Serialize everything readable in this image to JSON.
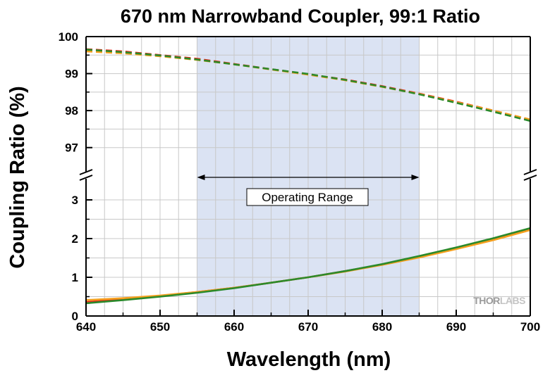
{
  "chart_data": {
    "type": "line",
    "title": "670 nm Narrowband Coupler, 99:1 Ratio",
    "xlabel": "Wavelength (nm)",
    "ylabel": "Coupling Ratio (%)",
    "xlim": [
      640,
      700
    ],
    "broken_y_axis": true,
    "upper_ylim": [
      96.5,
      100
    ],
    "lower_ylim": [
      0,
      3.4
    ],
    "x_ticks": [
      "640",
      "650",
      "660",
      "670",
      "680",
      "690",
      "700"
    ],
    "upper_y_ticks": [
      "97",
      "98",
      "99",
      "100"
    ],
    "lower_y_ticks": [
      "0",
      "1",
      "2",
      "3"
    ],
    "grid": true,
    "shaded_region": {
      "x": [
        655,
        685
      ],
      "color": "#dbe3f3",
      "label": "Operating Range"
    },
    "brand": "THORLABS",
    "series": [
      {
        "panel": "upper",
        "style": "dashed",
        "color": "#e8261c",
        "x": [
          640,
          645,
          650,
          655,
          660,
          665,
          670,
          675,
          680,
          685,
          690,
          695,
          700
        ],
        "y": [
          99.66,
          99.6,
          99.5,
          99.4,
          99.26,
          99.12,
          98.98,
          98.84,
          98.66,
          98.46,
          98.24,
          98.0,
          97.75
        ]
      },
      {
        "panel": "upper",
        "style": "dashed",
        "color": "#f5a01e",
        "x": [
          640,
          645,
          650,
          655,
          660,
          665,
          670,
          675,
          680,
          685,
          690,
          695,
          700
        ],
        "y": [
          99.6,
          99.55,
          99.47,
          99.37,
          99.25,
          99.11,
          98.97,
          98.82,
          98.64,
          98.45,
          98.23,
          98.0,
          97.76
        ]
      },
      {
        "panel": "upper",
        "style": "dashed",
        "color": "#2b8a2b",
        "x": [
          640,
          645,
          650,
          655,
          660,
          665,
          670,
          675,
          680,
          685,
          690,
          695,
          700
        ],
        "y": [
          99.65,
          99.58,
          99.49,
          99.38,
          99.25,
          99.12,
          98.99,
          98.83,
          98.65,
          98.44,
          98.21,
          97.97,
          97.72
        ]
      },
      {
        "panel": "lower",
        "style": "solid",
        "color": "#e8261c",
        "x": [
          640,
          645,
          650,
          655,
          660,
          665,
          670,
          675,
          680,
          685,
          690,
          695,
          700
        ],
        "y": [
          0.36,
          0.43,
          0.52,
          0.62,
          0.73,
          0.86,
          1.0,
          1.16,
          1.33,
          1.53,
          1.74,
          1.97,
          2.23
        ]
      },
      {
        "panel": "lower",
        "style": "solid",
        "color": "#f5a01e",
        "x": [
          640,
          645,
          650,
          655,
          660,
          665,
          670,
          675,
          680,
          685,
          690,
          695,
          700
        ],
        "y": [
          0.41,
          0.46,
          0.53,
          0.62,
          0.73,
          0.86,
          1.0,
          1.15,
          1.32,
          1.51,
          1.73,
          1.96,
          2.22
        ]
      },
      {
        "panel": "lower",
        "style": "solid",
        "color": "#2b8a2b",
        "x": [
          640,
          645,
          650,
          655,
          660,
          665,
          670,
          675,
          680,
          685,
          690,
          695,
          700
        ],
        "y": [
          0.33,
          0.41,
          0.5,
          0.6,
          0.72,
          0.86,
          1.0,
          1.16,
          1.34,
          1.55,
          1.77,
          2.01,
          2.27
        ]
      }
    ]
  }
}
